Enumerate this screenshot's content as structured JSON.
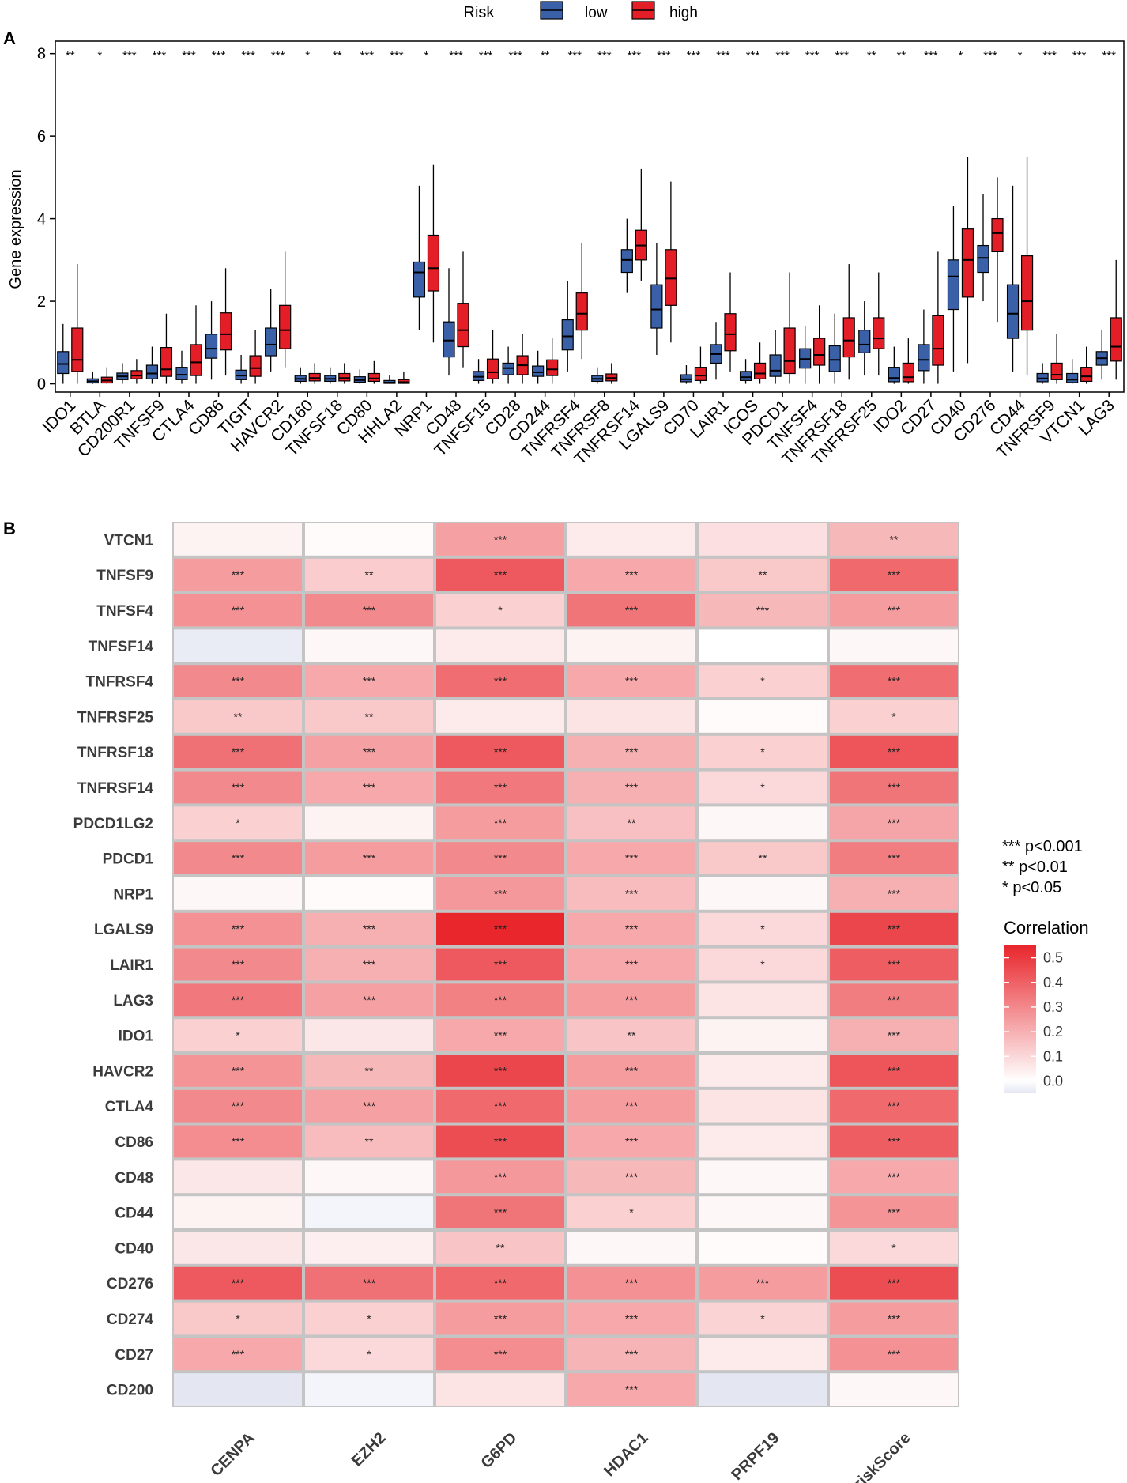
{
  "figure": {
    "panel_a_label": "A",
    "panel_b_label": "B"
  },
  "chart_data": [
    {
      "type": "box",
      "title": "",
      "ylabel": "Gene expression",
      "xlabel": "",
      "ylim": [
        -0.2,
        8.3
      ],
      "yticks": [
        0,
        2,
        4,
        6,
        8
      ],
      "legend": {
        "title": "Risk",
        "entries": [
          {
            "name": "low",
            "color": "#3a61a8"
          },
          {
            "name": "high",
            "color": "#e31e26"
          }
        ],
        "placement": "top"
      },
      "categories": [
        "IDO1",
        "BTLA",
        "CD200R1",
        "TNFSF9",
        "CTLA4",
        "CD86",
        "TIGIT",
        "HAVCR2",
        "CD160",
        "TNFSF18",
        "CD80",
        "HHLA2",
        "NRP1",
        "CD48",
        "TNFSF15",
        "CD28",
        "CD244",
        "TNFRSF4",
        "TNFRSF8",
        "TNFRSF14",
        "LGALS9",
        "CD70",
        "LAIR1",
        "ICOS",
        "PDCD1",
        "TNFSF4",
        "TNFRSF18",
        "TNFRSF25",
        "IDO2",
        "CD27",
        "CD40",
        "CD276",
        "CD44",
        "TNFRSF9",
        "VTCN1",
        "LAG3"
      ],
      "significance": [
        "**",
        "*",
        "***",
        "***",
        "***",
        "***",
        "***",
        "***",
        "*",
        "**",
        "***",
        "***",
        "*",
        "***",
        "***",
        "***",
        "**",
        "***",
        "***",
        "***",
        "***",
        "***",
        "***",
        "***",
        "***",
        "***",
        "***",
        "**",
        "**",
        "***",
        "*",
        "***",
        "*",
        "***",
        "***",
        "***"
      ],
      "series": [
        {
          "name": "low",
          "color": "#3a61a8",
          "boxes": [
            [
              0.0,
              0.25,
              0.48,
              0.78,
              1.45
            ],
            [
              0.0,
              0.02,
              0.06,
              0.12,
              0.3
            ],
            [
              0.0,
              0.1,
              0.18,
              0.26,
              0.5
            ],
            [
              0.0,
              0.12,
              0.25,
              0.45,
              0.9
            ],
            [
              0.0,
              0.1,
              0.22,
              0.4,
              0.8
            ],
            [
              0.1,
              0.62,
              0.85,
              1.2,
              2.0
            ],
            [
              0.0,
              0.1,
              0.2,
              0.33,
              0.7
            ],
            [
              0.3,
              0.68,
              0.95,
              1.35,
              2.3
            ],
            [
              0.0,
              0.06,
              0.12,
              0.2,
              0.4
            ],
            [
              0.0,
              0.06,
              0.12,
              0.2,
              0.4
            ],
            [
              0.0,
              0.04,
              0.09,
              0.17,
              0.35
            ],
            [
              0.0,
              0.01,
              0.03,
              0.08,
              0.2
            ],
            [
              1.3,
              2.1,
              2.7,
              2.95,
              4.8
            ],
            [
              0.2,
              0.65,
              1.05,
              1.5,
              2.8
            ],
            [
              0.0,
              0.08,
              0.17,
              0.3,
              0.6
            ],
            [
              0.0,
              0.22,
              0.38,
              0.5,
              0.9
            ],
            [
              0.0,
              0.18,
              0.28,
              0.43,
              0.8
            ],
            [
              0.3,
              0.82,
              1.15,
              1.55,
              2.5
            ],
            [
              0.0,
              0.06,
              0.12,
              0.2,
              0.4
            ],
            [
              2.2,
              2.7,
              3.0,
              3.25,
              4.0
            ],
            [
              0.7,
              1.35,
              1.8,
              2.4,
              3.4
            ],
            [
              0.0,
              0.05,
              0.11,
              0.22,
              0.45
            ],
            [
              0.1,
              0.5,
              0.72,
              0.95,
              1.5
            ],
            [
              0.0,
              0.08,
              0.16,
              0.3,
              0.6
            ],
            [
              0.0,
              0.18,
              0.32,
              0.7,
              1.3
            ],
            [
              0.0,
              0.38,
              0.6,
              0.85,
              1.4
            ],
            [
              0.0,
              0.3,
              0.58,
              0.92,
              1.7
            ],
            [
              0.2,
              0.75,
              0.95,
              1.3,
              2.0
            ],
            [
              0.0,
              0.05,
              0.14,
              0.4,
              0.9
            ],
            [
              0.0,
              0.32,
              0.58,
              0.95,
              1.8
            ],
            [
              0.3,
              1.8,
              2.6,
              3.0,
              4.3
            ],
            [
              2.0,
              2.7,
              3.05,
              3.35,
              4.6
            ],
            [
              0.3,
              1.1,
              1.7,
              2.4,
              4.8
            ],
            [
              0.0,
              0.05,
              0.13,
              0.25,
              0.5
            ],
            [
              0.0,
              0.03,
              0.1,
              0.25,
              0.6
            ],
            [
              0.1,
              0.45,
              0.62,
              0.78,
              1.3
            ]
          ]
        },
        {
          "name": "high",
          "color": "#e31e26",
          "boxes": [
            [
              0.0,
              0.3,
              0.58,
              1.35,
              2.9
            ],
            [
              0.0,
              0.02,
              0.08,
              0.16,
              0.4
            ],
            [
              0.0,
              0.12,
              0.2,
              0.32,
              0.6
            ],
            [
              0.0,
              0.18,
              0.35,
              0.88,
              1.7
            ],
            [
              0.0,
              0.2,
              0.52,
              0.95,
              1.9
            ],
            [
              0.2,
              0.82,
              1.2,
              1.72,
              2.8
            ],
            [
              0.0,
              0.18,
              0.38,
              0.68,
              1.3
            ],
            [
              0.4,
              0.85,
              1.3,
              1.9,
              3.2
            ],
            [
              0.0,
              0.07,
              0.14,
              0.25,
              0.5
            ],
            [
              0.0,
              0.07,
              0.14,
              0.25,
              0.5
            ],
            [
              0.0,
              0.06,
              0.13,
              0.25,
              0.55
            ],
            [
              0.0,
              0.01,
              0.04,
              0.1,
              0.3
            ],
            [
              1.0,
              2.25,
              2.8,
              3.6,
              5.3
            ],
            [
              0.4,
              0.9,
              1.3,
              1.95,
              3.2
            ],
            [
              0.0,
              0.12,
              0.28,
              0.6,
              1.3
            ],
            [
              0.0,
              0.22,
              0.45,
              0.68,
              1.2
            ],
            [
              0.0,
              0.2,
              0.35,
              0.58,
              1.1
            ],
            [
              0.6,
              1.3,
              1.7,
              2.2,
              3.4
            ],
            [
              0.0,
              0.07,
              0.14,
              0.24,
              0.5
            ],
            [
              2.5,
              3.0,
              3.35,
              3.72,
              5.2
            ],
            [
              1.0,
              1.9,
              2.55,
              3.25,
              4.9
            ],
            [
              0.0,
              0.08,
              0.2,
              0.4,
              0.9
            ],
            [
              0.3,
              0.8,
              1.2,
              1.7,
              2.7
            ],
            [
              0.0,
              0.12,
              0.25,
              0.5,
              1.0
            ],
            [
              0.0,
              0.25,
              0.55,
              1.35,
              2.7
            ],
            [
              0.0,
              0.45,
              0.7,
              1.1,
              1.9
            ],
            [
              0.1,
              0.65,
              1.05,
              1.6,
              2.9
            ],
            [
              0.2,
              0.85,
              1.1,
              1.6,
              2.7
            ],
            [
              0.0,
              0.05,
              0.16,
              0.5,
              1.1
            ],
            [
              0.0,
              0.45,
              0.85,
              1.65,
              3.2
            ],
            [
              0.5,
              2.1,
              3.0,
              3.75,
              5.5
            ],
            [
              1.5,
              3.2,
              3.65,
              4.0,
              5.0
            ],
            [
              0.2,
              1.3,
              2.0,
              3.1,
              5.5
            ],
            [
              0.0,
              0.1,
              0.22,
              0.5,
              1.2
            ],
            [
              0.0,
              0.06,
              0.18,
              0.4,
              0.9
            ],
            [
              0.1,
              0.55,
              0.9,
              1.6,
              3.0
            ]
          ]
        }
      ]
    },
    {
      "type": "heatmap",
      "title": "",
      "x_categories": [
        "CENPA",
        "EZH2",
        "G6PD",
        "HDAC1",
        "PRPF19",
        "riskScore"
      ],
      "y_categories": [
        "VTCN1",
        "TNFSF9",
        "TNFSF4",
        "TNFSF14",
        "TNFRSF4",
        "TNFRSF25",
        "TNFRSF18",
        "TNFRSF14",
        "PDCD1LG2",
        "PDCD1",
        "NRP1",
        "LGALS9",
        "LAIR1",
        "LAG3",
        "IDO1",
        "HAVCR2",
        "CTLA4",
        "CD86",
        "CD48",
        "CD44",
        "CD40",
        "CD276",
        "CD274",
        "CD27",
        "CD200"
      ],
      "values": [
        [
          0.03,
          0.01,
          0.24,
          0.05,
          0.08,
          0.18
        ],
        [
          0.25,
          0.13,
          0.42,
          0.22,
          0.14,
          0.38
        ],
        [
          0.28,
          0.3,
          0.12,
          0.35,
          0.18,
          0.25
        ],
        [
          -0.04,
          0.02,
          0.05,
          0.03,
          0.0,
          0.02
        ],
        [
          0.3,
          0.22,
          0.37,
          0.22,
          0.12,
          0.37
        ],
        [
          0.14,
          0.14,
          0.05,
          0.07,
          0.01,
          0.12
        ],
        [
          0.36,
          0.24,
          0.42,
          0.2,
          0.12,
          0.43
        ],
        [
          0.3,
          0.22,
          0.34,
          0.2,
          0.1,
          0.35
        ],
        [
          0.12,
          0.03,
          0.25,
          0.16,
          0.02,
          0.23
        ],
        [
          0.3,
          0.25,
          0.3,
          0.22,
          0.14,
          0.33
        ],
        [
          0.02,
          0.01,
          0.26,
          0.17,
          0.02,
          0.2
        ],
        [
          0.28,
          0.2,
          0.55,
          0.22,
          0.1,
          0.47
        ],
        [
          0.3,
          0.2,
          0.42,
          0.22,
          0.1,
          0.41
        ],
        [
          0.34,
          0.24,
          0.32,
          0.25,
          0.07,
          0.33
        ],
        [
          0.12,
          0.06,
          0.22,
          0.15,
          0.03,
          0.2
        ],
        [
          0.27,
          0.18,
          0.47,
          0.25,
          0.05,
          0.43
        ],
        [
          0.3,
          0.24,
          0.38,
          0.25,
          0.07,
          0.38
        ],
        [
          0.29,
          0.17,
          0.45,
          0.22,
          0.05,
          0.41
        ],
        [
          0.06,
          0.02,
          0.26,
          0.18,
          0.02,
          0.22
        ],
        [
          0.03,
          -0.02,
          0.35,
          0.12,
          0.02,
          0.27
        ],
        [
          0.06,
          0.04,
          0.15,
          0.02,
          0.01,
          0.1
        ],
        [
          0.42,
          0.36,
          0.38,
          0.28,
          0.25,
          0.45
        ],
        [
          0.14,
          0.12,
          0.25,
          0.22,
          0.11,
          0.25
        ],
        [
          0.22,
          0.1,
          0.29,
          0.19,
          0.05,
          0.28
        ],
        [
          -0.05,
          -0.02,
          0.07,
          0.22,
          -0.07,
          0.02
        ]
      ],
      "significance": [
        [
          "",
          "",
          "***",
          "",
          "",
          "**"
        ],
        [
          "***",
          "**",
          "***",
          "***",
          "**",
          "***"
        ],
        [
          "***",
          "***",
          "*",
          "***",
          "***",
          "***"
        ],
        [
          "",
          "",
          "",
          "",
          "",
          ""
        ],
        [
          "***",
          "***",
          "***",
          "***",
          "*",
          "***"
        ],
        [
          "**",
          "**",
          "",
          "",
          "",
          "*"
        ],
        [
          "***",
          "***",
          "***",
          "***",
          "*",
          "***"
        ],
        [
          "***",
          "***",
          "***",
          "***",
          "*",
          "***"
        ],
        [
          "*",
          "",
          "***",
          "**",
          "",
          "***"
        ],
        [
          "***",
          "***",
          "***",
          "***",
          "**",
          "***"
        ],
        [
          "",
          "",
          "***",
          "***",
          "",
          "***"
        ],
        [
          "***",
          "***",
          "***",
          "***",
          "*",
          "***"
        ],
        [
          "***",
          "***",
          "***",
          "***",
          "*",
          "***"
        ],
        [
          "***",
          "***",
          "***",
          "***",
          "",
          "***"
        ],
        [
          "*",
          "",
          "***",
          "**",
          "",
          "***"
        ],
        [
          "***",
          "**",
          "***",
          "***",
          "",
          "***"
        ],
        [
          "***",
          "***",
          "***",
          "***",
          "",
          "***"
        ],
        [
          "***",
          "**",
          "***",
          "***",
          "",
          "***"
        ],
        [
          "",
          "",
          "***",
          "***",
          "",
          "***"
        ],
        [
          "",
          "",
          "***",
          "*",
          "",
          "***"
        ],
        [
          "",
          "",
          "**",
          "",
          "",
          "*"
        ],
        [
          "***",
          "***",
          "***",
          "***",
          "***",
          "***"
        ],
        [
          "*",
          "*",
          "***",
          "***",
          "*",
          "***"
        ],
        [
          "***",
          "*",
          "***",
          "***",
          "",
          "***"
        ],
        [
          "",
          "",
          "",
          "***",
          "",
          ""
        ]
      ],
      "significance_legend": [
        "*** p<0.001",
        "** p<0.01",
        "* p<0.05"
      ],
      "colorbar": {
        "title": "Correlation",
        "ticks": [
          "0.5",
          "0.4",
          "0.3",
          "0.2",
          "0.1",
          "0.0"
        ],
        "range": [
          -0.05,
          0.55
        ],
        "low_color": "#e4e6f2",
        "mid_color": "#ffffff",
        "high_color": "#e8262c"
      }
    }
  ]
}
